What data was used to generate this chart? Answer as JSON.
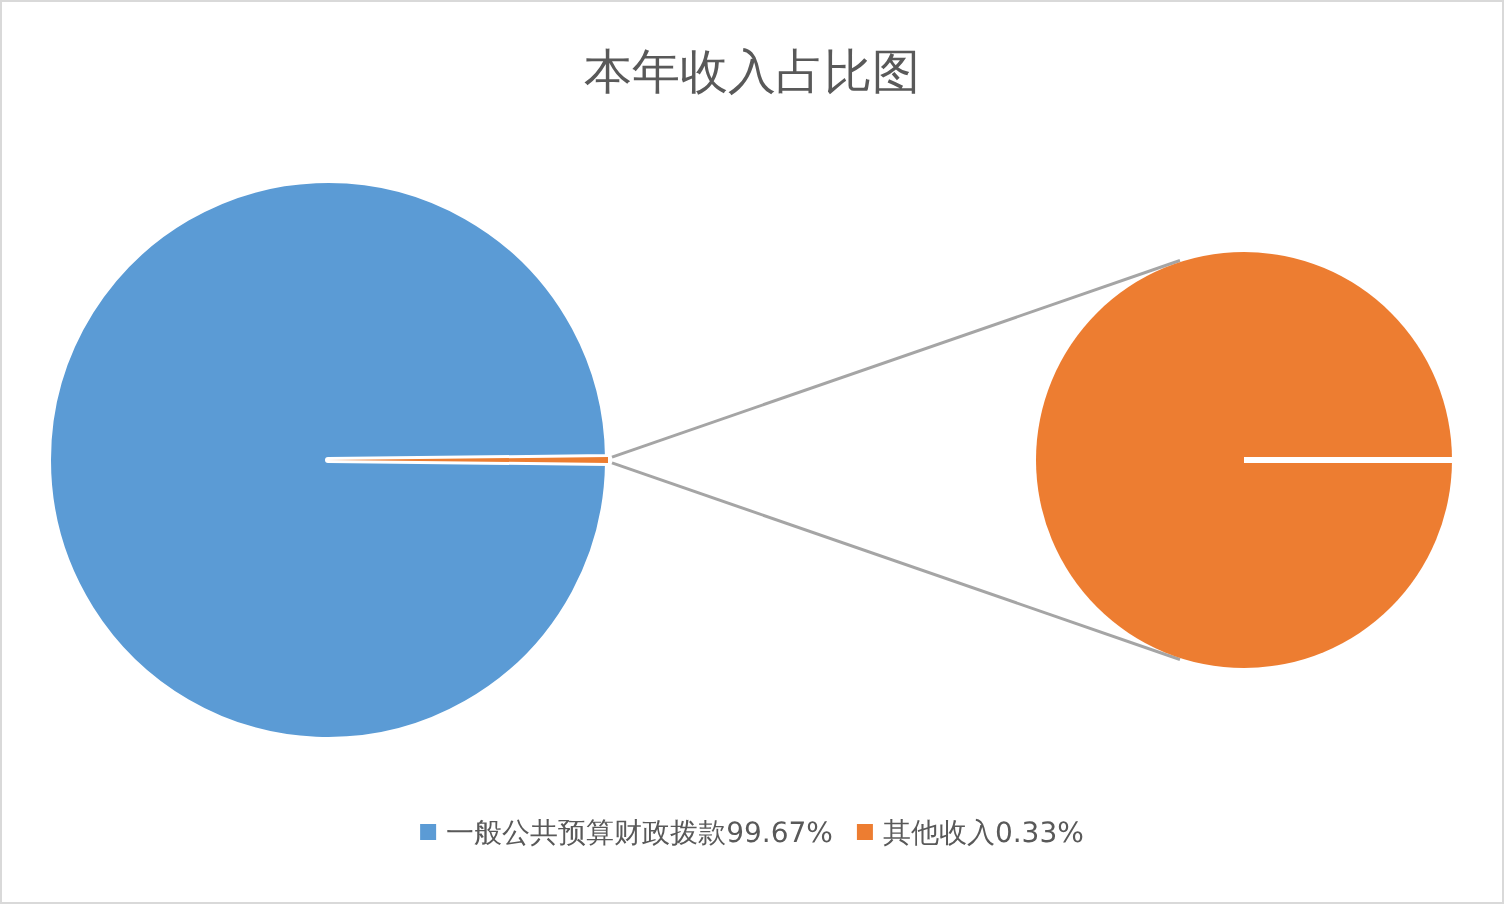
{
  "chart_data": {
    "type": "pie",
    "title": "本年收入占比图",
    "categories": [
      "一般公共预算财政拨款99.67%",
      "其他收入0.33%"
    ],
    "values": [
      99.67,
      0.33
    ],
    "colors": [
      "#5b9bd5",
      "#ed7d31"
    ],
    "legend": "bottom"
  }
}
